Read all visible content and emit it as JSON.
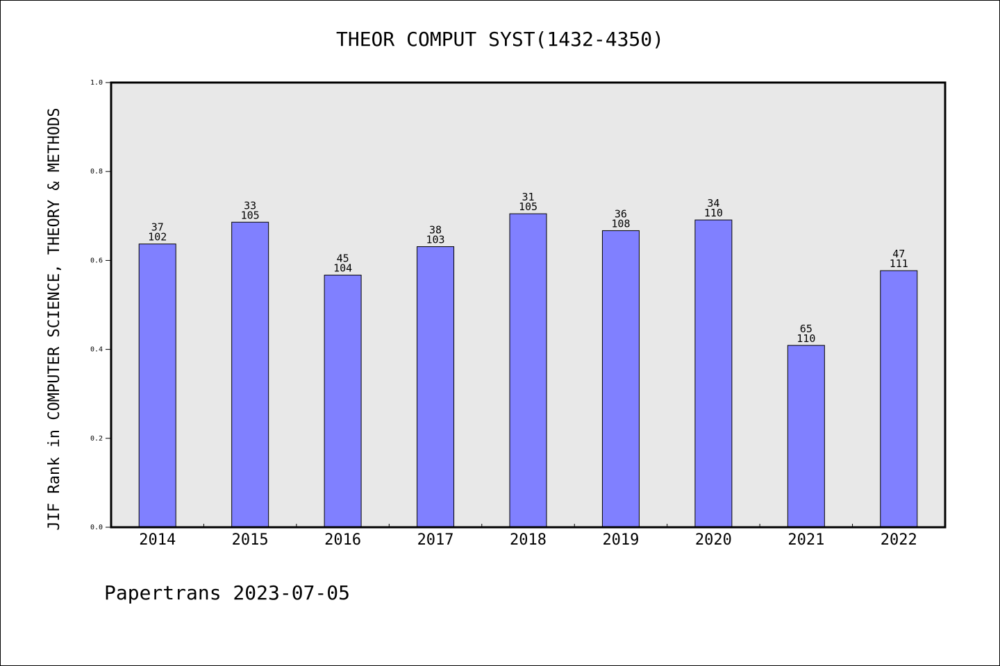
{
  "chart_data": {
    "type": "bar",
    "title": "THEOR COMPUT SYST(1432-4350)",
    "xlabel": "",
    "ylabel": "JIF Rank in COMPUTER SCIENCE, THEORY & METHODS",
    "categories": [
      "2014",
      "2015",
      "2016",
      "2017",
      "2018",
      "2019",
      "2020",
      "2021",
      "2022"
    ],
    "values": [
      0.637,
      0.686,
      0.567,
      0.631,
      0.705,
      0.667,
      0.691,
      0.409,
      0.577
    ],
    "ranks": [
      "37",
      "33",
      "45",
      "38",
      "31",
      "36",
      "34",
      "65",
      "47"
    ],
    "totals": [
      "102",
      "105",
      "104",
      "103",
      "105",
      "108",
      "110",
      "110",
      "111"
    ],
    "ylim": [
      0,
      1
    ],
    "yticks": [
      "0.0",
      "0.2",
      "0.4",
      "0.6",
      "0.8",
      "1.0"
    ],
    "grid": false,
    "bar_color": "#8080ff",
    "plot_bg": "#e8e8e8"
  },
  "footer": "Papertrans 2023-07-05"
}
